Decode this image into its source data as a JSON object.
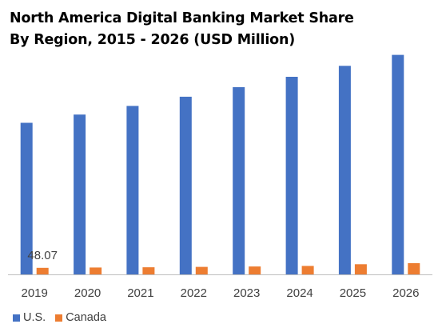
{
  "title": {
    "line1": "North America Digital Banking Market Share",
    "line2": "By Region, 2015 - 2026 (USD Million)"
  },
  "colors": {
    "us": "#4472C4",
    "canada": "#ED7D31",
    "axis": "#BFBFBF",
    "tick_text": "#404040"
  },
  "legend": {
    "us_label": "U.S.",
    "canada_label": "Canada"
  },
  "chart_data": {
    "type": "bar",
    "title": "North America Digital Banking Market Share By Region, 2015 - 2026 (USD Million)",
    "categories": [
      "2019",
      "2020",
      "2021",
      "2022",
      "2023",
      "2024",
      "2025",
      "2026"
    ],
    "series": [
      {
        "name": "U.S.",
        "values": [
          1105,
          1165,
          1228,
          1295,
          1365,
          1440,
          1520,
          1600
        ]
      },
      {
        "name": "Canada",
        "values": [
          48.07,
          50,
          52,
          55,
          58,
          62,
          74,
          82
        ]
      }
    ],
    "data_labels": [
      {
        "series": "Canada",
        "category": "2019",
        "text": "48.07"
      }
    ],
    "ylim": [
      0,
      1650
    ],
    "grid": false,
    "legend_position": "bottom-left"
  }
}
